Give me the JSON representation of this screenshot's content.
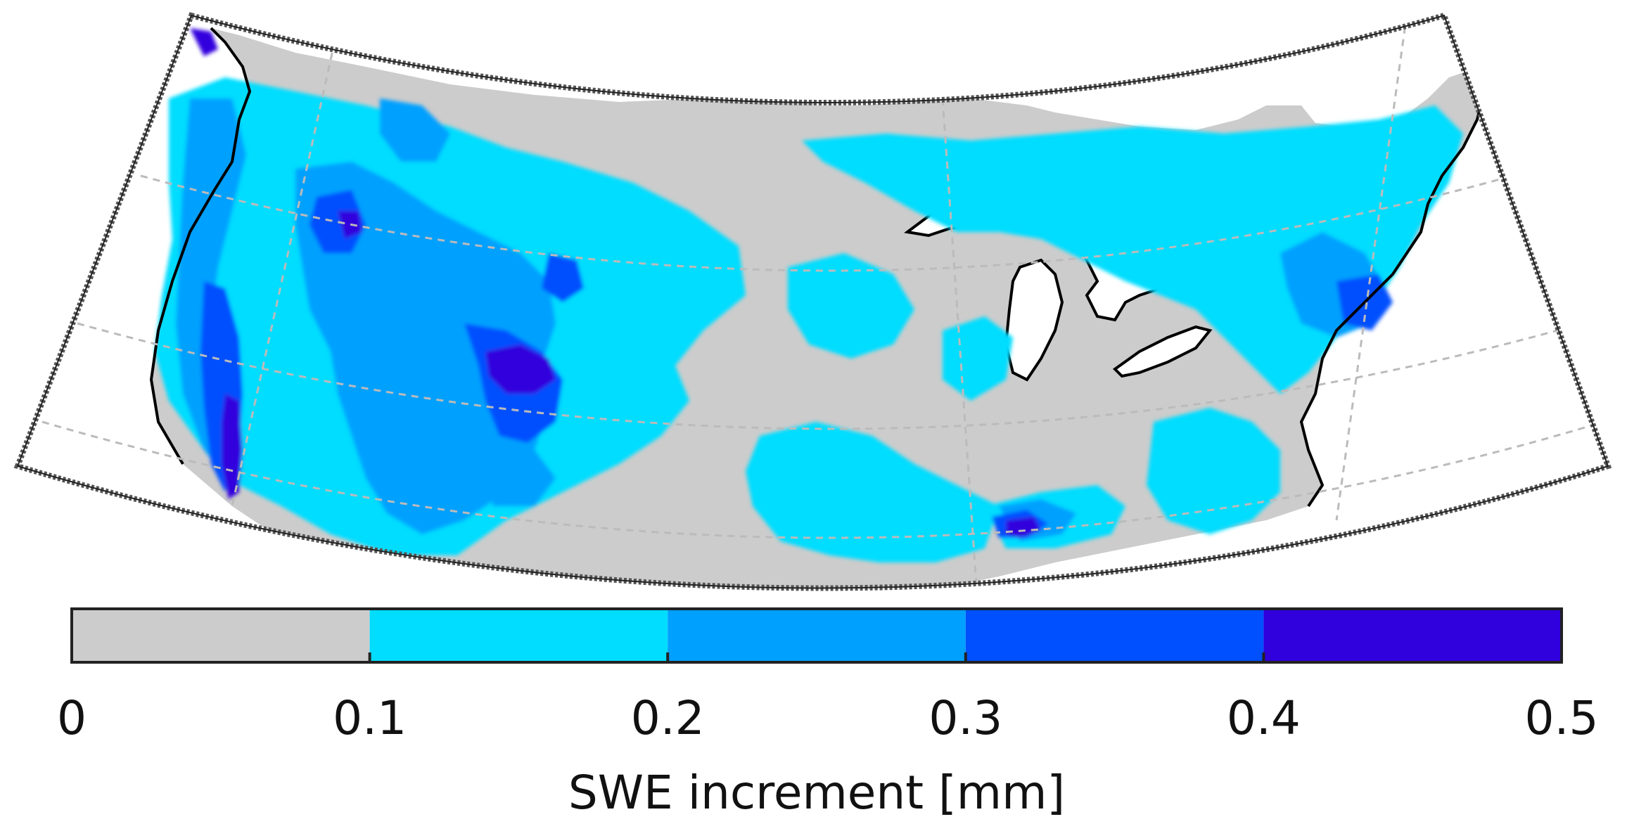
{
  "map": {
    "projection": "conic",
    "region": "Contiguous United States",
    "graticule": "dashed",
    "land_fill": "#cccccc",
    "water_fill": "#ffffff",
    "coastline_color": "#000000"
  },
  "colorbar": {
    "label": "SWE increment [mm]",
    "ticks": [
      "0",
      "0.1",
      "0.2",
      "0.3",
      "0.4",
      "0.5"
    ],
    "classes": [
      {
        "min": 0.0,
        "max": 0.1,
        "color": "#cccccc"
      },
      {
        "min": 0.1,
        "max": 0.2,
        "color": "#00ddff"
      },
      {
        "min": 0.2,
        "max": 0.3,
        "color": "#00a0ff"
      },
      {
        "min": 0.3,
        "max": 0.4,
        "color": "#0050ff"
      },
      {
        "min": 0.4,
        "max": 0.5,
        "color": "#3000dd"
      }
    ]
  }
}
